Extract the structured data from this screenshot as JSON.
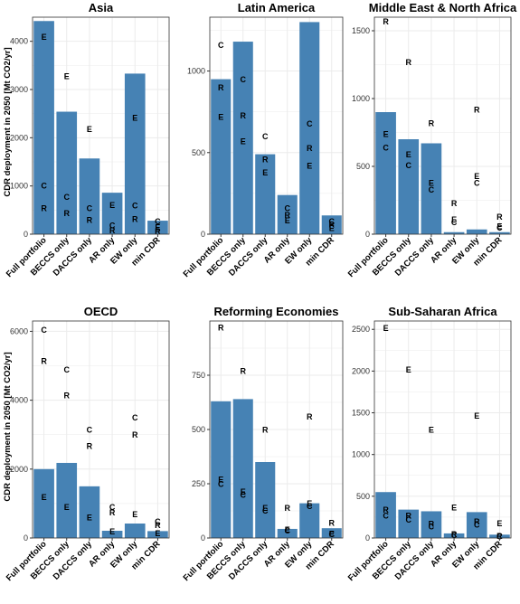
{
  "y_axis_label": "CDR deployment in 2050 [Mt CO2/yr]",
  "bar_color": "#4682b4",
  "grid_color": "#ebebeb",
  "chart_data": [
    {
      "type": "bar",
      "title": "Asia",
      "categories": [
        "Full portfolio",
        "BECCS only",
        "DACCS only",
        "AR only",
        "EW only",
        "min CDR"
      ],
      "values": [
        4420,
        2540,
        1570,
        860,
        3330,
        280
      ],
      "ylim": [
        0,
        4500
      ],
      "yticks": [
        0,
        1000,
        2000,
        3000,
        4000
      ],
      "ylabel": "CDR deployment in 2050 [Mt CO2/yr]",
      "grid": true,
      "markers": [
        [
          {
            "letter": "E",
            "y": 4100
          },
          {
            "letter": "C",
            "y": 1010
          },
          {
            "letter": "R",
            "y": 540
          }
        ],
        [
          {
            "letter": "E",
            "y": 3280
          },
          {
            "letter": "C",
            "y": 780
          },
          {
            "letter": "R",
            "y": 440
          }
        ],
        [
          {
            "letter": "E",
            "y": 2180
          },
          {
            "letter": "C",
            "y": 540
          },
          {
            "letter": "R",
            "y": 300
          }
        ],
        [
          {
            "letter": "E",
            "y": 610
          },
          {
            "letter": "C",
            "y": 190
          },
          {
            "letter": "R",
            "y": 80
          }
        ],
        [
          {
            "letter": "E",
            "y": 2420
          },
          {
            "letter": "C",
            "y": 600
          },
          {
            "letter": "R",
            "y": 320
          }
        ],
        [
          {
            "letter": "C",
            "y": 270
          },
          {
            "letter": "E",
            "y": 150
          },
          {
            "letter": "R",
            "y": 70
          }
        ]
      ]
    },
    {
      "type": "bar",
      "title": "Latin America",
      "categories": [
        "Full portfolio",
        "BECCS only",
        "DACCS only",
        "AR only",
        "EW only",
        "min CDR"
      ],
      "values": [
        950,
        1180,
        490,
        240,
        1300,
        115
      ],
      "ylim": [
        0,
        1330
      ],
      "yticks": [
        0,
        500,
        1000
      ],
      "ylabel": "",
      "grid": true,
      "markers": [
        [
          {
            "letter": "C",
            "y": 1160
          },
          {
            "letter": "R",
            "y": 900
          },
          {
            "letter": "E",
            "y": 720
          }
        ],
        [
          {
            "letter": "C",
            "y": 950
          },
          {
            "letter": "R",
            "y": 730
          },
          {
            "letter": "E",
            "y": 570
          }
        ],
        [
          {
            "letter": "C",
            "y": 600
          },
          {
            "letter": "R",
            "y": 460
          },
          {
            "letter": "E",
            "y": 380
          }
        ],
        [
          {
            "letter": "C",
            "y": 160
          },
          {
            "letter": "R",
            "y": 120
          },
          {
            "letter": "E",
            "y": 85
          }
        ],
        [
          {
            "letter": "C",
            "y": 680
          },
          {
            "letter": "R",
            "y": 530
          },
          {
            "letter": "E",
            "y": 420
          }
        ],
        [
          {
            "letter": "C",
            "y": 80
          },
          {
            "letter": "R",
            "y": 60
          },
          {
            "letter": "E",
            "y": 40
          }
        ]
      ]
    },
    {
      "type": "bar",
      "title": "Middle East & North Africa",
      "categories": [
        "Full portfolio",
        "BECCS only",
        "DACCS only",
        "AR only",
        "EW only",
        "min CDR"
      ],
      "values": [
        900,
        700,
        670,
        15,
        35,
        15
      ],
      "ylim": [
        0,
        1600
      ],
      "yticks": [
        0,
        500,
        1000,
        1500
      ],
      "ylabel": "",
      "grid": true,
      "markers": [
        [
          {
            "letter": "R",
            "y": 1570
          },
          {
            "letter": "E",
            "y": 740
          },
          {
            "letter": "C",
            "y": 640
          }
        ],
        [
          {
            "letter": "R",
            "y": 1270
          },
          {
            "letter": "E",
            "y": 590
          },
          {
            "letter": "C",
            "y": 510
          }
        ],
        [
          {
            "letter": "R",
            "y": 820
          },
          {
            "letter": "E",
            "y": 380
          },
          {
            "letter": "C",
            "y": 330
          }
        ],
        [
          {
            "letter": "R",
            "y": 230
          },
          {
            "letter": "E",
            "y": 110
          },
          {
            "letter": "C",
            "y": 90
          }
        ],
        [
          {
            "letter": "R",
            "y": 920
          },
          {
            "letter": "E",
            "y": 430
          },
          {
            "letter": "C",
            "y": 380
          }
        ],
        [
          {
            "letter": "R",
            "y": 130
          },
          {
            "letter": "E",
            "y": 60
          },
          {
            "letter": "C",
            "y": 50
          }
        ]
      ]
    },
    {
      "type": "bar",
      "title": "OECD",
      "categories": [
        "Full portfolio",
        "BECCS only",
        "DACCS only",
        "AR only",
        "EW only",
        "min CDR"
      ],
      "values": [
        2000,
        2180,
        1500,
        210,
        420,
        200
      ],
      "ylim": [
        0,
        6300
      ],
      "yticks": [
        0,
        2000,
        4000,
        6000
      ],
      "ylabel": "CDR deployment in 2050 [Mt CO2/yr]",
      "grid": true,
      "markers": [
        [
          {
            "letter": "C",
            "y": 6050
          },
          {
            "letter": "R",
            "y": 5150
          },
          {
            "letter": "E",
            "y": 1200
          }
        ],
        [
          {
            "letter": "C",
            "y": 4900
          },
          {
            "letter": "R",
            "y": 4150
          },
          {
            "letter": "E",
            "y": 900
          }
        ],
        [
          {
            "letter": "C",
            "y": 3150
          },
          {
            "letter": "R",
            "y": 2680
          },
          {
            "letter": "E",
            "y": 600
          }
        ],
        [
          {
            "letter": "C",
            "y": 900
          },
          {
            "letter": "R",
            "y": 750
          },
          {
            "letter": "E",
            "y": 200
          }
        ],
        [
          {
            "letter": "C",
            "y": 3500
          },
          {
            "letter": "R",
            "y": 3000
          },
          {
            "letter": "E",
            "y": 700
          }
        ],
        [
          {
            "letter": "C",
            "y": 480
          },
          {
            "letter": "R",
            "y": 380
          },
          {
            "letter": "E",
            "y": 150
          }
        ]
      ]
    },
    {
      "type": "bar",
      "title": "Reforming Economies",
      "categories": [
        "Full portfolio",
        "BECCS only",
        "DACCS only",
        "AR only",
        "EW only",
        "min CDR"
      ],
      "values": [
        630,
        640,
        350,
        42,
        160,
        45
      ],
      "ylim": [
        0,
        1000
      ],
      "yticks": [
        0,
        250,
        500,
        750
      ],
      "ylabel": "",
      "grid": true,
      "markers": [
        [
          {
            "letter": "R",
            "y": 970
          },
          {
            "letter": "E",
            "y": 270
          },
          {
            "letter": "C",
            "y": 250
          }
        ],
        [
          {
            "letter": "R",
            "y": 770
          },
          {
            "letter": "E",
            "y": 215
          },
          {
            "letter": "C",
            "y": 200
          }
        ],
        [
          {
            "letter": "R",
            "y": 500
          },
          {
            "letter": "E",
            "y": 140
          },
          {
            "letter": "C",
            "y": 128
          }
        ],
        [
          {
            "letter": "R",
            "y": 140
          },
          {
            "letter": "E",
            "y": 40
          },
          {
            "letter": "C",
            "y": 35
          }
        ],
        [
          {
            "letter": "R",
            "y": 560
          },
          {
            "letter": "E",
            "y": 160
          },
          {
            "letter": "C",
            "y": 148
          }
        ],
        [
          {
            "letter": "R",
            "y": 70
          },
          {
            "letter": "E",
            "y": 20
          },
          {
            "letter": "C",
            "y": 18
          }
        ]
      ]
    },
    {
      "type": "bar",
      "title": "Sub-Saharan Africa",
      "categories": [
        "Full portfolio",
        "BECCS only",
        "DACCS only",
        "AR only",
        "EW only",
        "min CDR"
      ],
      "values": [
        550,
        340,
        320,
        55,
        310,
        40
      ],
      "ylim": [
        0,
        2600
      ],
      "yticks": [
        0,
        500,
        1000,
        1500,
        2000,
        2500
      ],
      "ylabel": "",
      "grid": true,
      "markers": [
        [
          {
            "letter": "E",
            "y": 2520
          },
          {
            "letter": "R",
            "y": 340
          },
          {
            "letter": "C",
            "y": 270
          }
        ],
        [
          {
            "letter": "E",
            "y": 2020
          },
          {
            "letter": "R",
            "y": 270
          },
          {
            "letter": "C",
            "y": 220
          }
        ],
        [
          {
            "letter": "E",
            "y": 1300
          },
          {
            "letter": "R",
            "y": 175
          },
          {
            "letter": "C",
            "y": 140
          }
        ],
        [
          {
            "letter": "E",
            "y": 370
          },
          {
            "letter": "R",
            "y": 50
          },
          {
            "letter": "C",
            "y": 40
          }
        ],
        [
          {
            "letter": "E",
            "y": 1470
          },
          {
            "letter": "R",
            "y": 200
          },
          {
            "letter": "C",
            "y": 160
          }
        ],
        [
          {
            "letter": "E",
            "y": 180
          },
          {
            "letter": "R",
            "y": 25
          },
          {
            "letter": "C",
            "y": 20
          }
        ]
      ]
    }
  ]
}
